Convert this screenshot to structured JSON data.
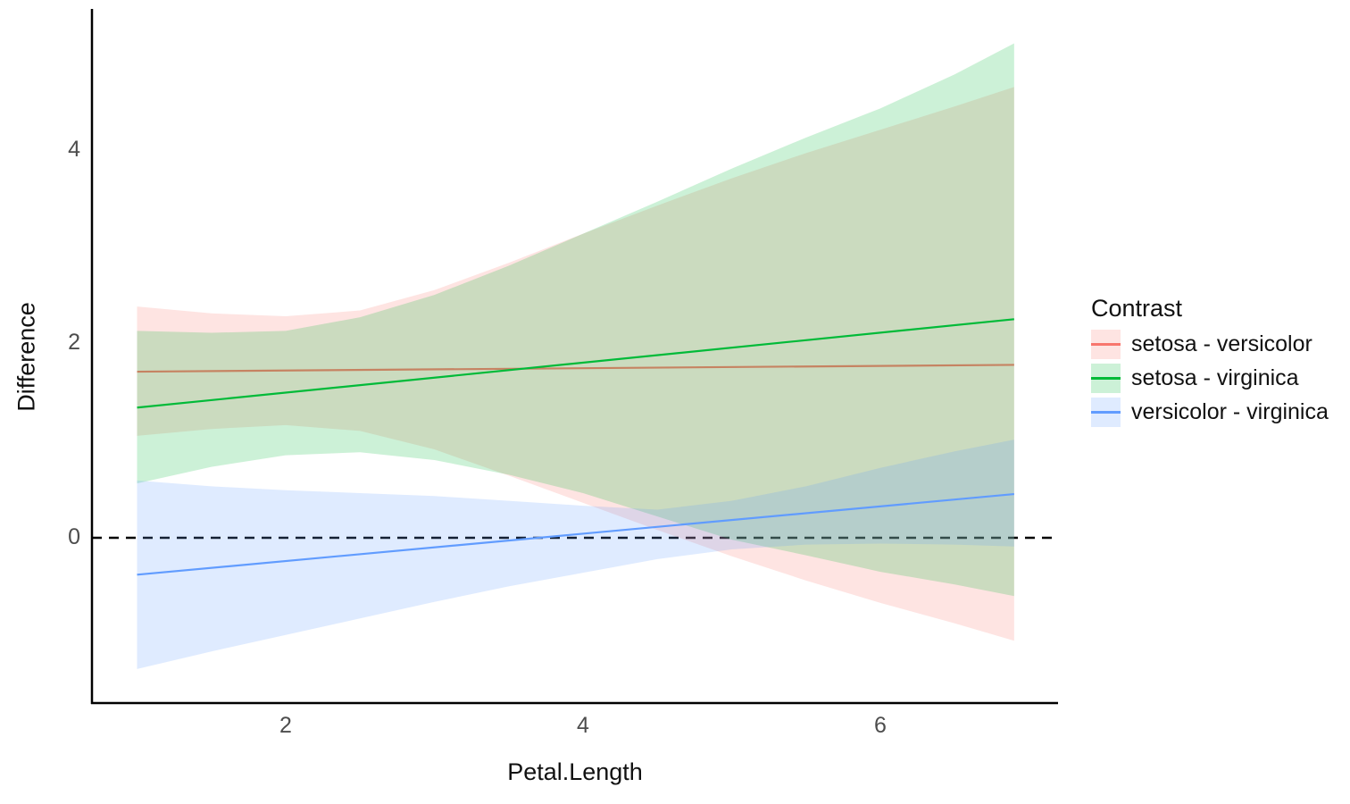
{
  "chart_data": {
    "type": "line",
    "title": "",
    "xlabel": "Petal.Length",
    "ylabel": "Difference",
    "x_ticks": [
      "2",
      "4",
      "6"
    ],
    "y_ticks": [
      "4",
      "2",
      "0"
    ],
    "x_domain": [
      0.7,
      7.2
    ],
    "y_domain": [
      -1.71,
      5.44
    ],
    "grid": "off",
    "background": "#ffffff",
    "tick_label_color": "#4d4d4d",
    "axis_color": "#000000",
    "hline": {
      "y": 0,
      "style": "dashed",
      "color": "#000000"
    },
    "legend": {
      "title": "Contrast",
      "position": "right"
    },
    "ribbon_opacity": 0.2,
    "series": [
      {
        "name": "setosa - versicolor",
        "color": "#F8766D",
        "line": {
          "x": [
            1.0,
            6.9
          ],
          "y": [
            1.71,
            1.78
          ]
        },
        "ribbon": {
          "x": [
            1.0,
            1.5,
            2.0,
            2.5,
            3.0,
            3.5,
            4.0,
            4.5,
            5.0,
            5.5,
            6.0,
            6.5,
            6.9
          ],
          "top": [
            2.38,
            2.31,
            2.28,
            2.34,
            2.55,
            2.83,
            3.13,
            3.42,
            3.7,
            3.96,
            4.2,
            4.44,
            4.64
          ],
          "bottom": [
            1.05,
            1.12,
            1.16,
            1.1,
            0.91,
            0.64,
            0.36,
            0.08,
            -0.19,
            -0.44,
            -0.67,
            -0.88,
            -1.06
          ]
        }
      },
      {
        "name": "setosa - virginica",
        "color": "#00BA38",
        "line": {
          "x": [
            1.0,
            6.9
          ],
          "y": [
            1.34,
            2.25
          ]
        },
        "ribbon": {
          "x": [
            1.0,
            1.5,
            2.0,
            2.5,
            3.0,
            3.5,
            4.0,
            4.5,
            5.0,
            5.5,
            6.0,
            6.5,
            6.9
          ],
          "top": [
            2.13,
            2.11,
            2.13,
            2.27,
            2.5,
            2.8,
            3.13,
            3.46,
            3.8,
            4.12,
            4.42,
            4.77,
            5.09
          ],
          "bottom": [
            0.56,
            0.73,
            0.85,
            0.88,
            0.8,
            0.65,
            0.46,
            0.22,
            -0.02,
            -0.18,
            -0.35,
            -0.48,
            -0.6
          ]
        }
      },
      {
        "name": "versicolor - virginica",
        "color": "#619CFF",
        "line": {
          "x": [
            1.0,
            6.9
          ],
          "y": [
            -0.38,
            0.45
          ]
        },
        "ribbon": {
          "x": [
            1.0,
            1.5,
            2.0,
            2.5,
            3.0,
            3.5,
            4.0,
            4.5,
            5.0,
            5.5,
            6.0,
            6.5,
            6.9
          ],
          "top": [
            0.59,
            0.53,
            0.49,
            0.46,
            0.43,
            0.38,
            0.33,
            0.29,
            0.38,
            0.53,
            0.72,
            0.89,
            1.01
          ],
          "bottom": [
            -1.35,
            -1.17,
            -1.0,
            -0.83,
            -0.66,
            -0.5,
            -0.36,
            -0.22,
            -0.12,
            -0.07,
            -0.06,
            -0.07,
            -0.09
          ]
        }
      }
    ]
  }
}
